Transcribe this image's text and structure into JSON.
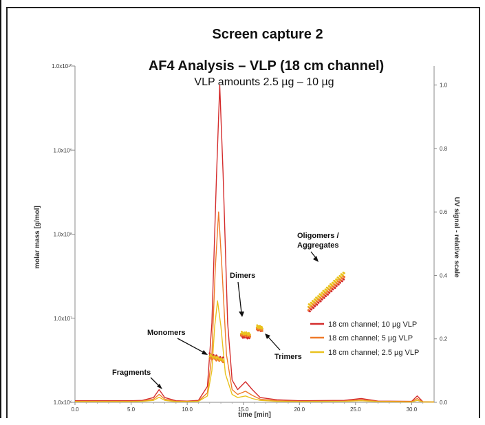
{
  "header": {
    "caption": "Screen capture 2"
  },
  "chart_data": {
    "type": "line",
    "title": "AF4 Analysis – VLP (18 cm channel)",
    "subtitle": "VLP amounts 2.5 µg – 10 µg",
    "xlabel": "time [min]",
    "ylabel": "molar mass [g/mol]",
    "y2label": "UV signal - relative scale",
    "xlim": [
      0,
      32
    ],
    "x_ticks": [
      "0.0",
      "5.0",
      "10.0",
      "15.0",
      "20.0",
      "25.0",
      "30.0"
    ],
    "x_tick_values": [
      0,
      5,
      10,
      15,
      20,
      25,
      30
    ],
    "ylim": [
      1000000,
      10000000000
    ],
    "y_scale": "log",
    "y_ticks": [
      "1.0x10⁶",
      "1.0x10⁷",
      "1.0x10⁸",
      "1.0x10⁹",
      "1.0x10¹⁰"
    ],
    "y_tick_values": [
      1000000,
      10000000,
      100000000,
      1000000000,
      10000000000
    ],
    "y2lim": [
      0,
      1.06
    ],
    "y2_ticks": [
      "0.0",
      "0.2",
      "0.4",
      "0.6",
      "0.8",
      "1.0"
    ],
    "y2_tick_values": [
      0,
      0.2,
      0.4,
      0.6,
      0.8,
      1.0
    ],
    "series": [
      {
        "name": "18 cm channel; 10 µg VLP",
        "color": "#d42c2c",
        "uv": [
          [
            0,
            0.005
          ],
          [
            5,
            0.005
          ],
          [
            6,
            0.006
          ],
          [
            7,
            0.015
          ],
          [
            7.5,
            0.04
          ],
          [
            8,
            0.015
          ],
          [
            9,
            0.005
          ],
          [
            10,
            0.004
          ],
          [
            11,
            0.006
          ],
          [
            11.8,
            0.05
          ],
          [
            12.2,
            0.25
          ],
          [
            12.6,
            0.7
          ],
          [
            12.9,
            1.0
          ],
          [
            13.2,
            0.72
          ],
          [
            13.6,
            0.25
          ],
          [
            14.0,
            0.07
          ],
          [
            14.5,
            0.04
          ],
          [
            15.2,
            0.065
          ],
          [
            15.8,
            0.04
          ],
          [
            16.5,
            0.015
          ],
          [
            18,
            0.008
          ],
          [
            20,
            0.005
          ],
          [
            24,
            0.006
          ],
          [
            25.5,
            0.012
          ],
          [
            27,
            0.004
          ],
          [
            30,
            0.003
          ],
          [
            30.5,
            0.02
          ],
          [
            31,
            0.002
          ],
          [
            32,
            0.001
          ]
        ],
        "mass": [
          {
            "label": "Monomers",
            "x": [
              12.0,
              13.2
            ],
            "y": [
              3700000,
              3300000
            ]
          },
          {
            "label": "Dimers",
            "x": [
              14.8,
              15.6
            ],
            "y": [
              6100000,
              5900000
            ]
          },
          {
            "label": "Trimers",
            "x": [
              16.2,
              16.7
            ],
            "y": [
              7500000,
              7200000
            ]
          },
          {
            "label": "Oligomers / Aggregates",
            "x": [
              20.8,
              24.0
            ],
            "y": [
              12000000,
              30000000
            ]
          }
        ]
      },
      {
        "name": "18 cm channel; 5 µg VLP",
        "color": "#ef7a2a",
        "uv": [
          [
            0,
            0.003
          ],
          [
            5,
            0.003
          ],
          [
            6,
            0.004
          ],
          [
            7,
            0.01
          ],
          [
            7.5,
            0.025
          ],
          [
            8,
            0.01
          ],
          [
            9,
            0.003
          ],
          [
            10,
            0.003
          ],
          [
            11,
            0.004
          ],
          [
            11.8,
            0.03
          ],
          [
            12.2,
            0.15
          ],
          [
            12.5,
            0.42
          ],
          [
            12.8,
            0.6
          ],
          [
            13.1,
            0.42
          ],
          [
            13.5,
            0.15
          ],
          [
            14.0,
            0.04
          ],
          [
            14.5,
            0.025
          ],
          [
            15.2,
            0.035
          ],
          [
            15.8,
            0.022
          ],
          [
            16.5,
            0.01
          ],
          [
            18,
            0.005
          ],
          [
            20,
            0.003
          ],
          [
            24,
            0.004
          ],
          [
            25.5,
            0.008
          ],
          [
            27,
            0.003
          ],
          [
            30,
            0.002
          ],
          [
            30.5,
            0.012
          ],
          [
            31,
            0.001
          ],
          [
            32,
            0.001
          ]
        ],
        "mass": [
          {
            "label": "Monomers",
            "x": [
              12.0,
              13.2
            ],
            "y": [
              3400000,
              3100000
            ]
          },
          {
            "label": "Dimers",
            "x": [
              14.8,
              15.6
            ],
            "y": [
              6400000,
              6200000
            ]
          },
          {
            "label": "Trimers",
            "x": [
              16.2,
              16.7
            ],
            "y": [
              7600000,
              7300000
            ]
          },
          {
            "label": "Oligomers / Aggregates",
            "x": [
              20.8,
              24.0
            ],
            "y": [
              13000000,
              32000000
            ]
          }
        ]
      },
      {
        "name": "18 cm channel; 2.5 µg VLP",
        "color": "#e9c21e",
        "uv": [
          [
            0,
            0.002
          ],
          [
            5,
            0.002
          ],
          [
            6,
            0.003
          ],
          [
            7,
            0.006
          ],
          [
            7.5,
            0.016
          ],
          [
            8,
            0.006
          ],
          [
            9,
            0.002
          ],
          [
            10,
            0.002
          ],
          [
            11,
            0.003
          ],
          [
            11.8,
            0.02
          ],
          [
            12.2,
            0.1
          ],
          [
            12.45,
            0.24
          ],
          [
            12.7,
            0.32
          ],
          [
            13.0,
            0.24
          ],
          [
            13.4,
            0.09
          ],
          [
            14.0,
            0.025
          ],
          [
            14.5,
            0.015
          ],
          [
            15.2,
            0.02
          ],
          [
            15.8,
            0.012
          ],
          [
            16.5,
            0.006
          ],
          [
            18,
            0.003
          ],
          [
            20,
            0.002
          ],
          [
            24,
            0.003
          ],
          [
            25.5,
            0.005
          ],
          [
            27,
            0.002
          ],
          [
            30,
            0.001
          ],
          [
            30.5,
            0.006
          ],
          [
            31,
            0.001
          ],
          [
            32,
            0.001
          ]
        ],
        "mass": [
          {
            "label": "Monomers",
            "x": [
              12.0,
              13.2
            ],
            "y": [
              3600000,
              3200000
            ]
          },
          {
            "label": "Dimers",
            "x": [
              14.8,
              15.6
            ],
            "y": [
              6700000,
              6500000
            ]
          },
          {
            "label": "Trimers",
            "x": [
              16.2,
              16.7
            ],
            "y": [
              8000000,
              7700000
            ]
          },
          {
            "label": "Oligomers / Aggregates",
            "x": [
              20.8,
              24.0
            ],
            "y": [
              14000000,
              35000000
            ]
          }
        ]
      }
    ],
    "annotations": [
      "Fragments",
      "Monomers",
      "Dimers",
      "Trimers",
      "Oligomers / Aggregates"
    ],
    "legend_position": "bottom-right",
    "grid": false
  }
}
